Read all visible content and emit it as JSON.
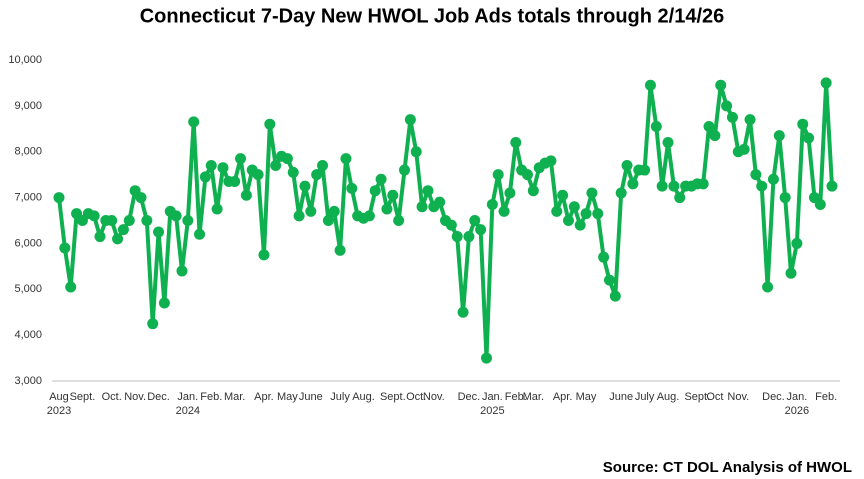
{
  "chart_data": {
    "type": "line",
    "title": "Connecticut 7-Day New HWOL Job Ads totals through 2/14/26",
    "source": "Source: CT DOL Analysis of HWOL",
    "categories": [
      "Aug",
      null,
      null,
      null,
      "Sept.",
      null,
      null,
      null,
      null,
      "Oct.",
      null,
      null,
      null,
      "Nov.",
      null,
      null,
      null,
      "Dec.",
      null,
      null,
      null,
      null,
      "Jan.",
      null,
      null,
      null,
      "Feb.",
      null,
      null,
      null,
      "Mar.",
      null,
      null,
      null,
      null,
      "Apr.",
      null,
      null,
      null,
      "May",
      null,
      null,
      null,
      "June",
      null,
      null,
      null,
      null,
      "July",
      null,
      null,
      null,
      "Aug.",
      null,
      null,
      null,
      null,
      "Sept.",
      null,
      null,
      null,
      "Oct.",
      null,
      null,
      "Nov.",
      null,
      null,
      null,
      null,
      null,
      "Dec.",
      null,
      null,
      null,
      "Jan.",
      null,
      null,
      null,
      "Feb.",
      null,
      null,
      "Mar.",
      null,
      null,
      null,
      null,
      "Apr.",
      null,
      null,
      null,
      "May",
      null,
      null,
      null,
      null,
      null,
      "June",
      null,
      null,
      null,
      "July",
      null,
      null,
      null,
      "Aug.",
      null,
      null,
      null,
      null,
      "Sept.",
      null,
      null,
      "Oct",
      null,
      null,
      null,
      "Nov.",
      null,
      null,
      null,
      null,
      null,
      "Dec.",
      null,
      null,
      null,
      "Jan.",
      null,
      null,
      null,
      null,
      "Feb.",
      null
    ],
    "category_years": [
      "2023",
      null,
      null,
      null,
      null,
      null,
      null,
      null,
      null,
      null,
      null,
      null,
      null,
      null,
      null,
      null,
      null,
      null,
      null,
      null,
      null,
      null,
      "2024",
      null,
      null,
      null,
      null,
      null,
      null,
      null,
      null,
      null,
      null,
      null,
      null,
      null,
      null,
      null,
      null,
      null,
      null,
      null,
      null,
      null,
      null,
      null,
      null,
      null,
      null,
      null,
      null,
      null,
      null,
      null,
      null,
      null,
      null,
      null,
      null,
      null,
      null,
      null,
      null,
      null,
      null,
      null,
      null,
      null,
      null,
      null,
      null,
      null,
      null,
      null,
      "2025",
      null,
      null,
      null,
      null,
      null,
      null,
      null,
      null,
      null,
      null,
      null,
      null,
      null,
      null,
      null,
      null,
      null,
      null,
      null,
      null,
      null,
      null,
      null,
      null,
      null,
      null,
      null,
      null,
      null,
      null,
      null,
      null,
      null,
      null,
      null,
      null,
      null,
      null,
      null,
      null,
      null,
      null,
      null,
      null,
      null,
      null,
      null,
      null,
      null,
      null,
      null,
      "2026",
      null,
      null,
      null,
      null,
      null,
      null
    ],
    "values": [
      7000,
      5900,
      5050,
      6650,
      6500,
      6650,
      6600,
      6150,
      6500,
      6500,
      6100,
      6300,
      6500,
      7150,
      7000,
      6500,
      4250,
      6250,
      4700,
      6700,
      6600,
      5400,
      6500,
      8650,
      6200,
      7450,
      7700,
      6750,
      7650,
      7350,
      7350,
      7850,
      7050,
      7600,
      7500,
      5750,
      8600,
      7700,
      7900,
      7850,
      7550,
      6600,
      7250,
      6700,
      7500,
      7700,
      6500,
      6700,
      5850,
      7850,
      7200,
      6600,
      6550,
      6600,
      7150,
      7400,
      6750,
      7050,
      6500,
      7600,
      8700,
      8000,
      6800,
      7150,
      6800,
      6900,
      6500,
      6400,
      6150,
      4500,
      6150,
      6500,
      6300,
      3500,
      6850,
      7500,
      6700,
      7100,
      8200,
      7600,
      7500,
      7150,
      7650,
      7750,
      7800,
      6700,
      7050,
      6500,
      6800,
      6400,
      6650,
      7100,
      6650,
      5700,
      5200,
      4850,
      7100,
      7700,
      7300,
      7600,
      7600,
      9450,
      8550,
      7250,
      8200,
      7250,
      7000,
      7250,
      7250,
      7300,
      7300,
      8550,
      8350,
      9450,
      9000,
      8750,
      8000,
      8050,
      8700,
      7500,
      7250,
      5050,
      7400,
      8350,
      7000,
      5350,
      6000,
      8600,
      8300,
      7000,
      6850,
      9500,
      7250
    ],
    "color": "#0fb04f",
    "ylim": [
      3000,
      10000
    ],
    "yticks": [
      {
        "value": 3000,
        "label": "3,000"
      },
      {
        "value": 4000,
        "label": "4,000"
      },
      {
        "value": 5000,
        "label": "5,000"
      },
      {
        "value": 6000,
        "label": "6,000"
      },
      {
        "value": 7000,
        "label": "7,000"
      },
      {
        "value": 8000,
        "label": "8,000"
      },
      {
        "value": 9000,
        "label": "9,000"
      },
      {
        "value": 10000,
        "label": "10,000"
      }
    ],
    "grid": false
  }
}
